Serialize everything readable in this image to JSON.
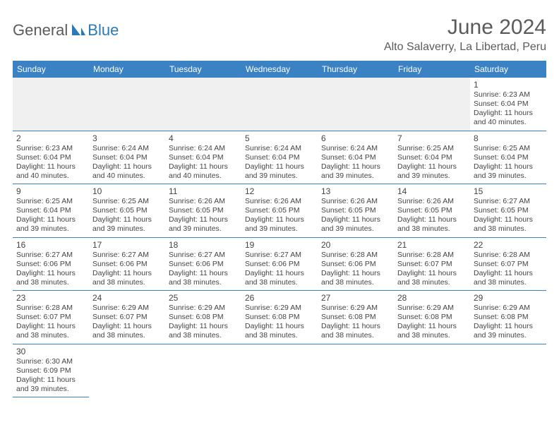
{
  "logo": {
    "general": "General",
    "blue": "Blue"
  },
  "title": "June 2024",
  "location": "Alto Salaverry, La Libertad, Peru",
  "colors": {
    "header_bg": "#3b82c4",
    "header_text": "#ffffff",
    "logo_gray": "#5b5b5b",
    "logo_blue": "#2a7ab8",
    "rule": "#3b82c4",
    "empty_bg": "#f0f0f0"
  },
  "day_headers": [
    "Sunday",
    "Monday",
    "Tuesday",
    "Wednesday",
    "Thursday",
    "Friday",
    "Saturday"
  ],
  "leading_blanks": 6,
  "days": [
    {
      "n": 1,
      "sunrise": "6:23 AM",
      "sunset": "6:04 PM",
      "daylight": "11 hours and 40 minutes."
    },
    {
      "n": 2,
      "sunrise": "6:23 AM",
      "sunset": "6:04 PM",
      "daylight": "11 hours and 40 minutes."
    },
    {
      "n": 3,
      "sunrise": "6:24 AM",
      "sunset": "6:04 PM",
      "daylight": "11 hours and 40 minutes."
    },
    {
      "n": 4,
      "sunrise": "6:24 AM",
      "sunset": "6:04 PM",
      "daylight": "11 hours and 40 minutes."
    },
    {
      "n": 5,
      "sunrise": "6:24 AM",
      "sunset": "6:04 PM",
      "daylight": "11 hours and 39 minutes."
    },
    {
      "n": 6,
      "sunrise": "6:24 AM",
      "sunset": "6:04 PM",
      "daylight": "11 hours and 39 minutes."
    },
    {
      "n": 7,
      "sunrise": "6:25 AM",
      "sunset": "6:04 PM",
      "daylight": "11 hours and 39 minutes."
    },
    {
      "n": 8,
      "sunrise": "6:25 AM",
      "sunset": "6:04 PM",
      "daylight": "11 hours and 39 minutes."
    },
    {
      "n": 9,
      "sunrise": "6:25 AM",
      "sunset": "6:04 PM",
      "daylight": "11 hours and 39 minutes."
    },
    {
      "n": 10,
      "sunrise": "6:25 AM",
      "sunset": "6:05 PM",
      "daylight": "11 hours and 39 minutes."
    },
    {
      "n": 11,
      "sunrise": "6:26 AM",
      "sunset": "6:05 PM",
      "daylight": "11 hours and 39 minutes."
    },
    {
      "n": 12,
      "sunrise": "6:26 AM",
      "sunset": "6:05 PM",
      "daylight": "11 hours and 39 minutes."
    },
    {
      "n": 13,
      "sunrise": "6:26 AM",
      "sunset": "6:05 PM",
      "daylight": "11 hours and 39 minutes."
    },
    {
      "n": 14,
      "sunrise": "6:26 AM",
      "sunset": "6:05 PM",
      "daylight": "11 hours and 38 minutes."
    },
    {
      "n": 15,
      "sunrise": "6:27 AM",
      "sunset": "6:05 PM",
      "daylight": "11 hours and 38 minutes."
    },
    {
      "n": 16,
      "sunrise": "6:27 AM",
      "sunset": "6:06 PM",
      "daylight": "11 hours and 38 minutes."
    },
    {
      "n": 17,
      "sunrise": "6:27 AM",
      "sunset": "6:06 PM",
      "daylight": "11 hours and 38 minutes."
    },
    {
      "n": 18,
      "sunrise": "6:27 AM",
      "sunset": "6:06 PM",
      "daylight": "11 hours and 38 minutes."
    },
    {
      "n": 19,
      "sunrise": "6:27 AM",
      "sunset": "6:06 PM",
      "daylight": "11 hours and 38 minutes."
    },
    {
      "n": 20,
      "sunrise": "6:28 AM",
      "sunset": "6:06 PM",
      "daylight": "11 hours and 38 minutes."
    },
    {
      "n": 21,
      "sunrise": "6:28 AM",
      "sunset": "6:07 PM",
      "daylight": "11 hours and 38 minutes."
    },
    {
      "n": 22,
      "sunrise": "6:28 AM",
      "sunset": "6:07 PM",
      "daylight": "11 hours and 38 minutes."
    },
    {
      "n": 23,
      "sunrise": "6:28 AM",
      "sunset": "6:07 PM",
      "daylight": "11 hours and 38 minutes."
    },
    {
      "n": 24,
      "sunrise": "6:29 AM",
      "sunset": "6:07 PM",
      "daylight": "11 hours and 38 minutes."
    },
    {
      "n": 25,
      "sunrise": "6:29 AM",
      "sunset": "6:08 PM",
      "daylight": "11 hours and 38 minutes."
    },
    {
      "n": 26,
      "sunrise": "6:29 AM",
      "sunset": "6:08 PM",
      "daylight": "11 hours and 38 minutes."
    },
    {
      "n": 27,
      "sunrise": "6:29 AM",
      "sunset": "6:08 PM",
      "daylight": "11 hours and 38 minutes."
    },
    {
      "n": 28,
      "sunrise": "6:29 AM",
      "sunset": "6:08 PM",
      "daylight": "11 hours and 38 minutes."
    },
    {
      "n": 29,
      "sunrise": "6:29 AM",
      "sunset": "6:08 PM",
      "daylight": "11 hours and 39 minutes."
    },
    {
      "n": 30,
      "sunrise": "6:30 AM",
      "sunset": "6:09 PM",
      "daylight": "11 hours and 39 minutes."
    }
  ],
  "labels": {
    "sunrise": "Sunrise:",
    "sunset": "Sunset:",
    "daylight": "Daylight:"
  }
}
